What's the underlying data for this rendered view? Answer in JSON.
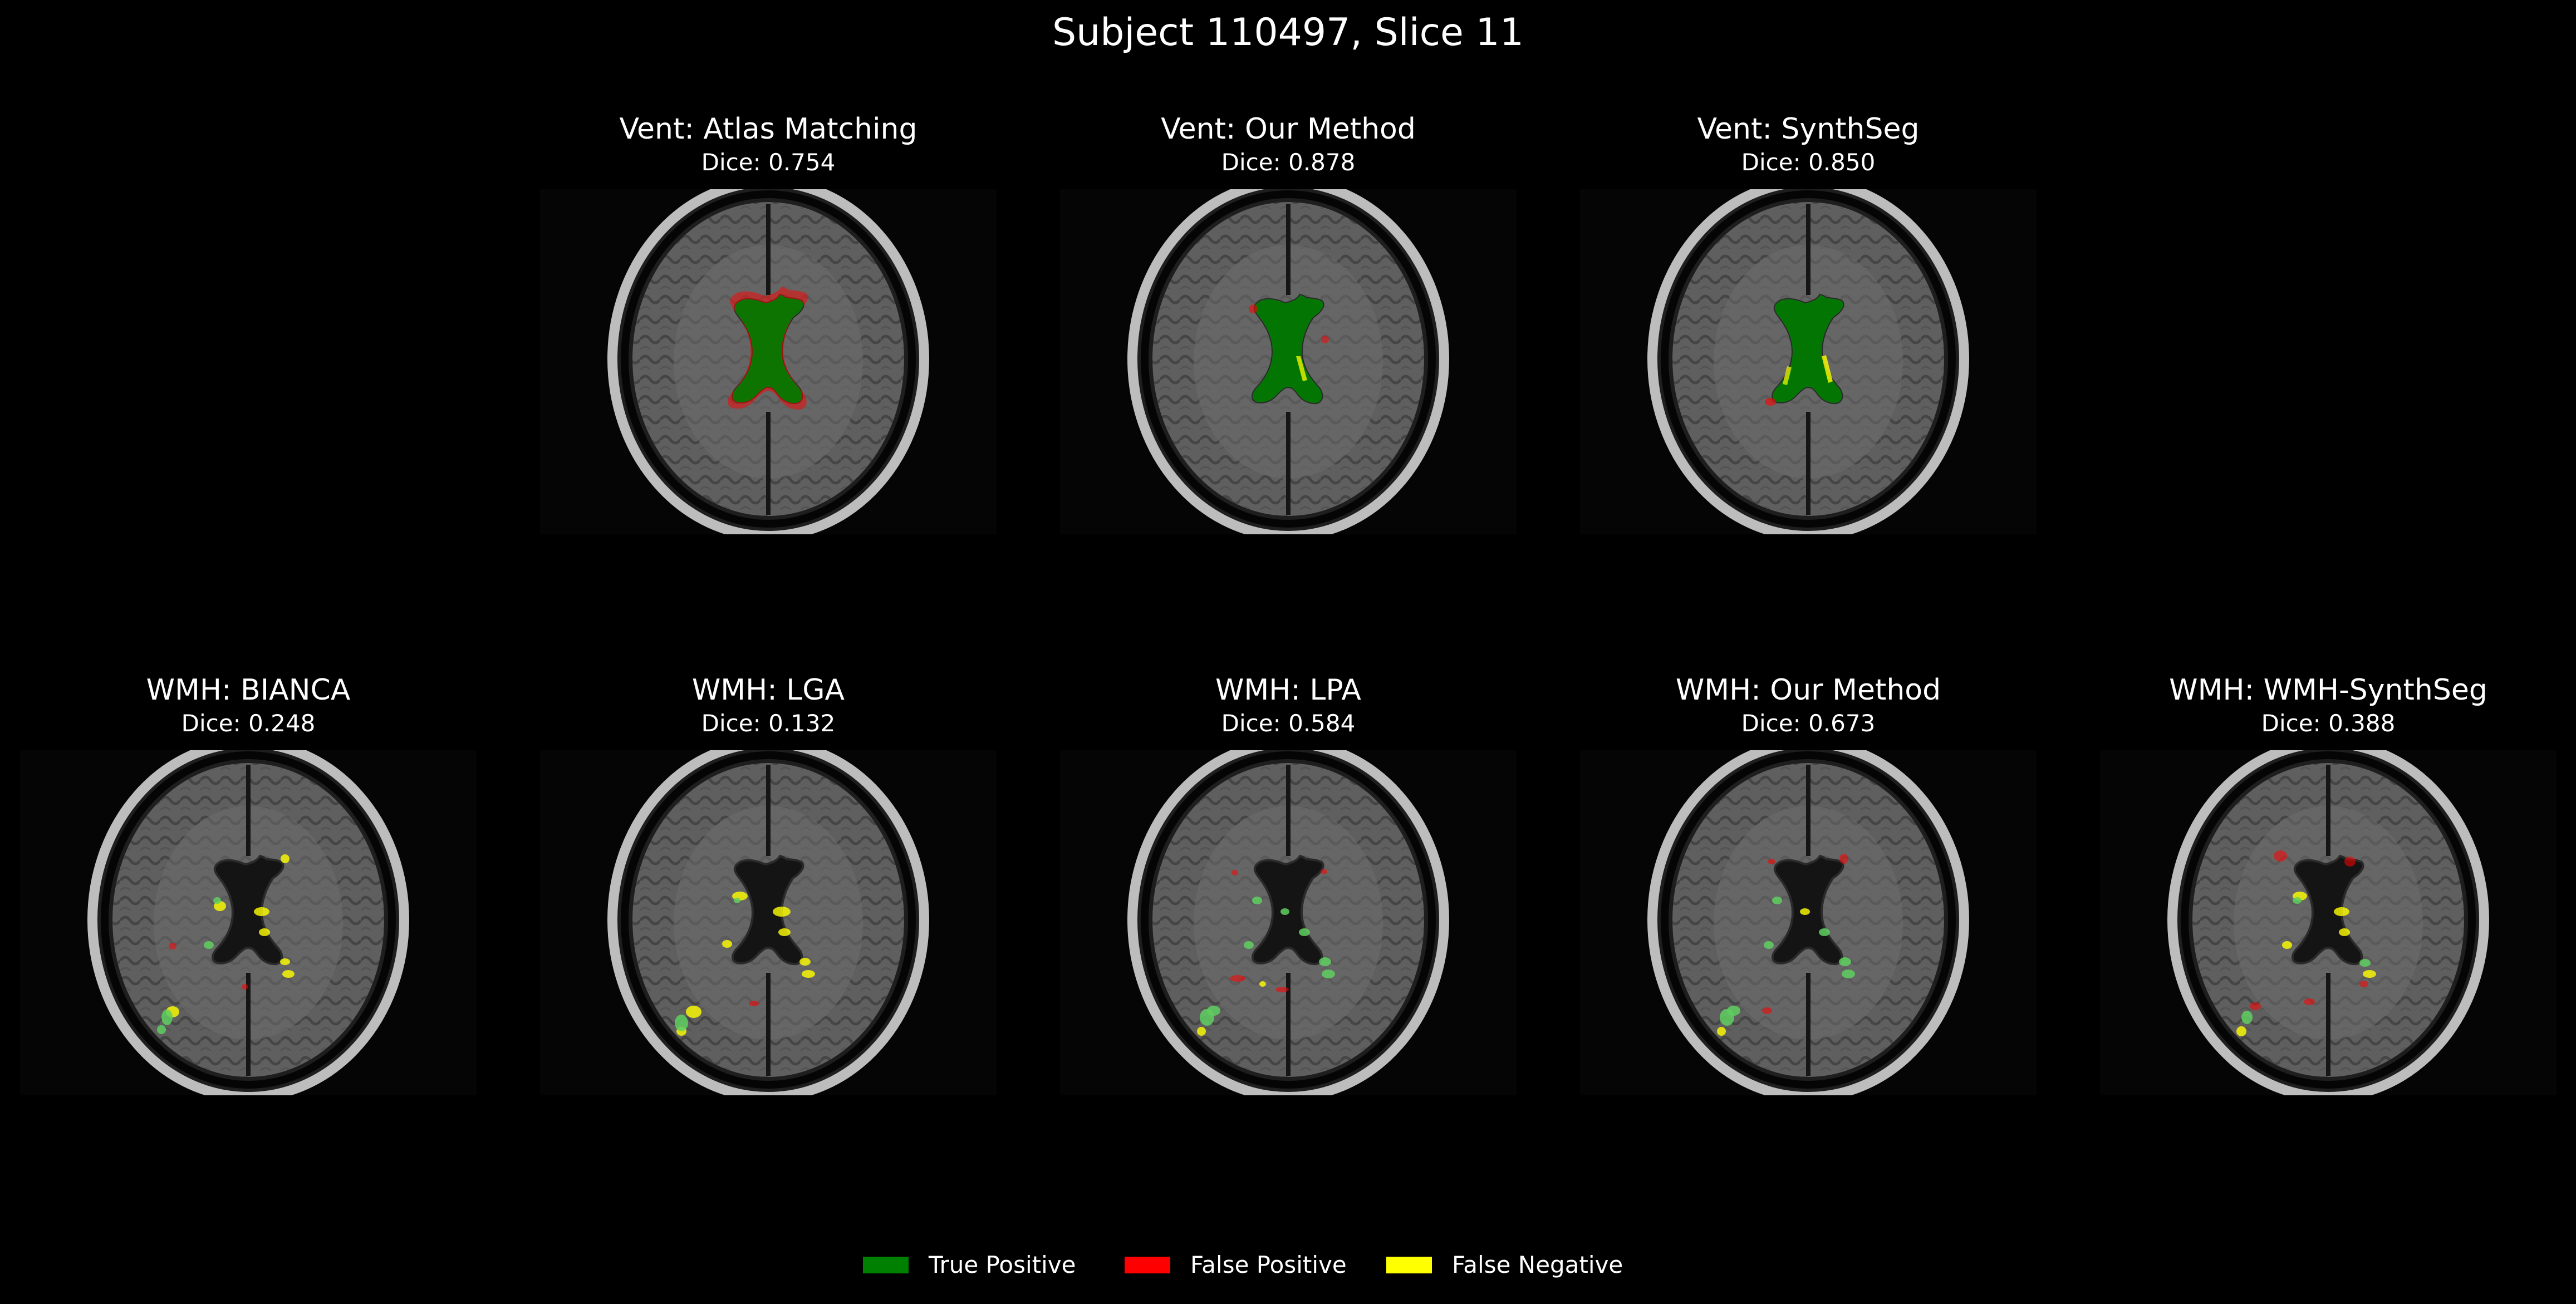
{
  "title": "Subject 110497, Slice 11",
  "top_row": [
    {
      "title": "Vent: Atlas Matching",
      "dice": "Dice: 0.754",
      "overlay": "vent-atlas"
    },
    {
      "title": "Vent: Our Method",
      "dice": "Dice: 0.878",
      "overlay": "vent-ours"
    },
    {
      "title": "Vent: SynthSeg",
      "dice": "Dice: 0.850",
      "overlay": "vent-synthseg"
    }
  ],
  "bottom_row": [
    {
      "title": "WMH: BIANCA",
      "dice": "Dice: 0.248",
      "overlay": "wmh-bianca"
    },
    {
      "title": "WMH: LGA",
      "dice": "Dice: 0.132",
      "overlay": "wmh-lga"
    },
    {
      "title": "WMH: LPA",
      "dice": "Dice: 0.584",
      "overlay": "wmh-lpa"
    },
    {
      "title": "WMH: Our Method",
      "dice": "Dice: 0.673",
      "overlay": "wmh-ours"
    },
    {
      "title": "WMH: WMH-SynthSeg",
      "dice": "Dice: 0.388",
      "overlay": "wmh-synthseg"
    }
  ],
  "legend": [
    {
      "label": "True Positive",
      "color": "#008000"
    },
    {
      "label": "False Positive",
      "color": "#ff0000"
    },
    {
      "label": "False Negative",
      "color": "#ffff00"
    }
  ],
  "colors": {
    "background": "#000000",
    "true_positive": "#008000",
    "false_positive": "#ff0000",
    "false_negative": "#ffff00"
  }
}
